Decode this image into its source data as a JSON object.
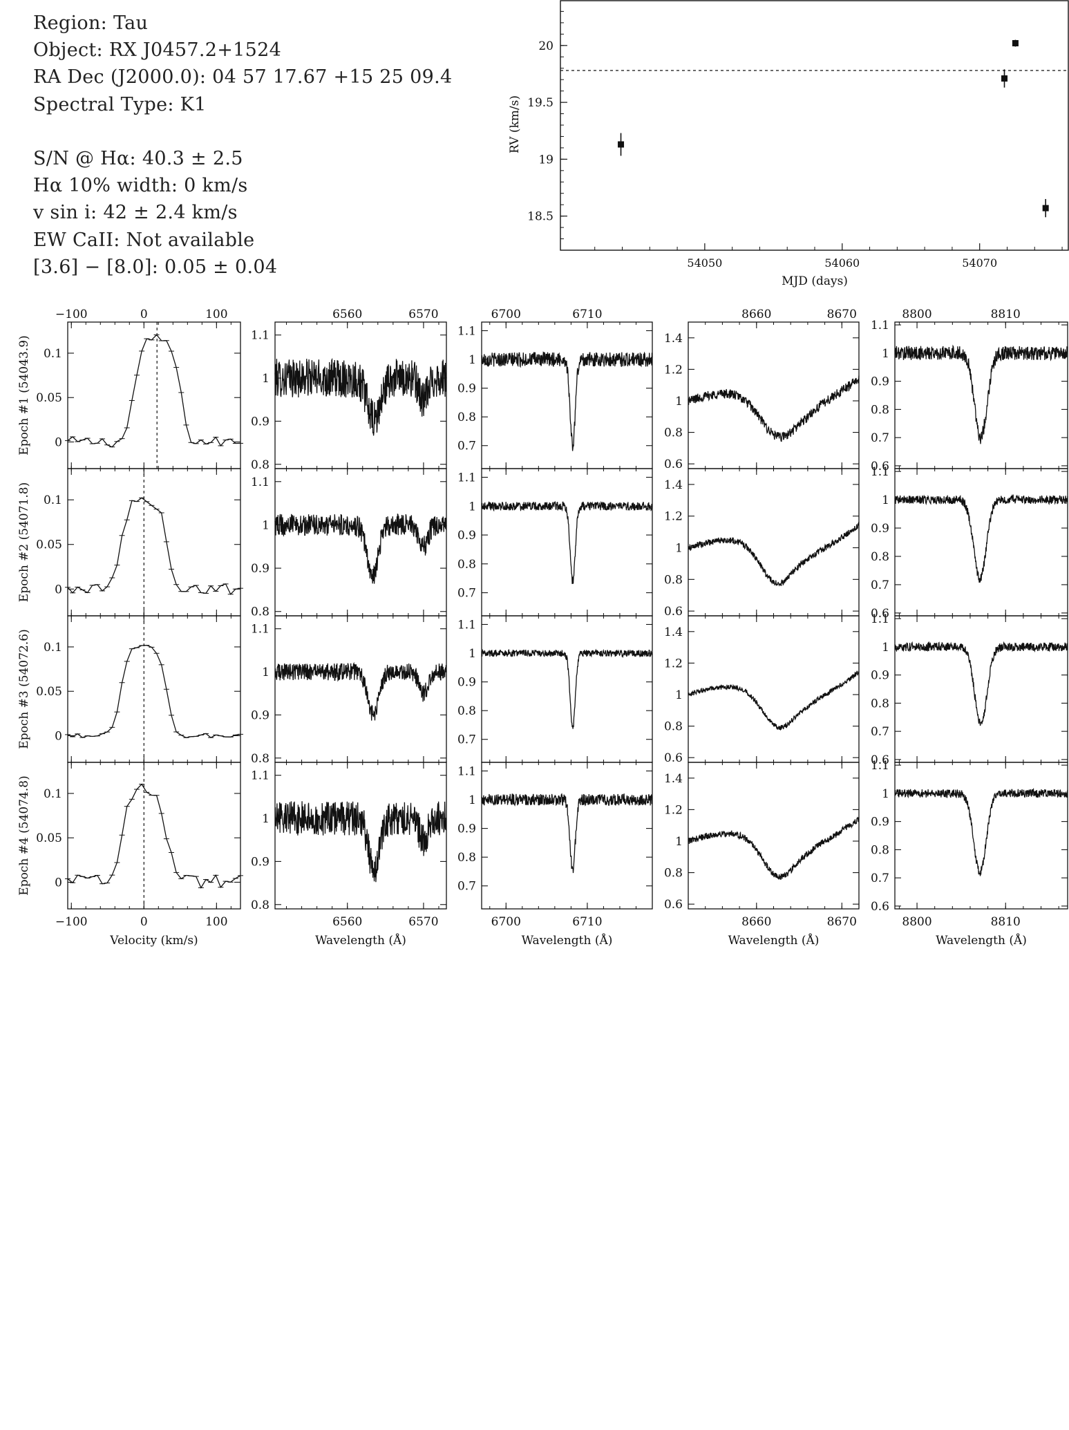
{
  "header": {
    "region": "Region: Tau",
    "object": "Object: RX J0457.2+1524",
    "radec": "RA Dec (J2000.0): 04 57 17.67 +15 25 09.4",
    "sptype": "Spectral Type: K1",
    "sn": "S/N @ Hα: 40.3 ± 2.5",
    "ha_width": "Hα 10% width: 0 km/s",
    "vsini": "v sin i: 42 ± 2.4 km/s",
    "ew_ca": "EW CaII: Not available",
    "irac": "[3.6] − [8.0]: 0.05 ± 0.04"
  },
  "chart_data": [
    {
      "id": "rv",
      "type": "scatter",
      "xlabel": "MJD (days)",
      "ylabel": "RV (km/s)",
      "xlim": [
        54039.5,
        54076.5
      ],
      "ylim": [
        18.2,
        20.4
      ],
      "xticks": [
        54050,
        54060,
        54070
      ],
      "yticks": [
        18.5,
        19,
        19.5,
        20
      ],
      "ytick_labels": [
        "18.5",
        "19",
        "19.5",
        "20"
      ],
      "mean_line": 19.78,
      "points": [
        {
          "x": 54043.9,
          "y": 19.13,
          "err": 0.1
        },
        {
          "x": 54071.8,
          "y": 19.71,
          "err": 0.08
        },
        {
          "x": 54072.6,
          "y": 20.02,
          "err": 0.03
        },
        {
          "x": 54074.8,
          "y": 18.57,
          "err": 0.08
        }
      ]
    },
    {
      "id": "spectra_grid",
      "type": "line",
      "epoch_labels": [
        "Epoch #1 (54043.9)",
        "Epoch #2 (54071.8)",
        "Epoch #3 (54072.6)",
        "Epoch #4 (54074.8)"
      ],
      "columns": [
        {
          "name": "broadening_function",
          "xlabel": "Velocity (km/s)",
          "xlim": [
            -105,
            133
          ],
          "xticks": [
            -100,
            0,
            100
          ],
          "xtick_labels": [
            "−100",
            "0",
            "100"
          ],
          "ylim": [
            -0.03,
            0.135
          ],
          "yticks": [
            0,
            0.05,
            0.1
          ],
          "ytick_labels": [
            "0",
            "0.05",
            "0.1"
          ],
          "rows": [
            {
              "center": 18,
              "peak": 0.115,
              "dip": 0.0,
              "width": 35,
              "noise": 0.006,
              "errorbars": true
            },
            {
              "center": 0,
              "peak": 0.1,
              "dip": 0.0,
              "width": 35,
              "noise": 0.006,
              "errorbars": true
            },
            {
              "center": 0,
              "peak": 0.1,
              "dip": 0.0,
              "width": 35,
              "noise": 0.003,
              "errorbars": true
            },
            {
              "center": 0,
              "peak": 0.105,
              "dip": 0.0,
              "width": 35,
              "noise": 0.008,
              "errorbars": true
            }
          ]
        },
        {
          "name": "h_alpha",
          "xlabel": "Wavelength (Å)",
          "xlim": [
            6550.5,
            6573.0
          ],
          "xticks": [
            6560,
            6570
          ],
          "xtick_labels": [
            "6560",
            "6570"
          ],
          "ylim": [
            0.79,
            1.13
          ],
          "yticks": [
            0.8,
            0.9,
            1,
            1.1
          ],
          "ytick_labels": [
            "0.8",
            "0.9",
            "1",
            "1.1"
          ],
          "rows": [
            {
              "center": 6563.5,
              "depth": 0.1,
              "width": 1.2,
              "noise": 0.045,
              "errorbars": false
            },
            {
              "center": 6563.3,
              "depth": 0.12,
              "width": 1.0,
              "noise": 0.025,
              "errorbars": false
            },
            {
              "center": 6563.4,
              "depth": 0.1,
              "width": 1.0,
              "noise": 0.02,
              "errorbars": false
            },
            {
              "center": 6563.5,
              "depth": 0.12,
              "width": 1.0,
              "noise": 0.04,
              "errorbars": false
            }
          ]
        },
        {
          "name": "li_6708",
          "xlabel": "Wavelength (Å)",
          "xlim": [
            6697.0,
            6718.0
          ],
          "xticks": [
            6700,
            6710
          ],
          "xtick_labels": [
            "6700",
            "6710"
          ],
          "ylim": [
            0.62,
            1.13
          ],
          "yticks": [
            0.7,
            0.8,
            0.9,
            1,
            1.1
          ],
          "ytick_labels": [
            "0.7",
            "0.8",
            "0.9",
            "1",
            "1.1"
          ],
          "rows": [
            {
              "center": 6708.2,
              "depth": 0.3,
              "width": 0.45,
              "noise": 0.025,
              "errorbars": false
            },
            {
              "center": 6708.2,
              "depth": 0.26,
              "width": 0.45,
              "noise": 0.015,
              "errorbars": false
            },
            {
              "center": 6708.2,
              "depth": 0.26,
              "width": 0.45,
              "noise": 0.012,
              "errorbars": false
            },
            {
              "center": 6708.2,
              "depth": 0.25,
              "width": 0.45,
              "noise": 0.02,
              "errorbars": false
            }
          ]
        },
        {
          "name": "ca_8662",
          "xlabel": "Wavelength (Å)",
          "xlim": [
            8652.0,
            8672.0
          ],
          "xticks": [
            8660,
            8670
          ],
          "xtick_labels": [
            "8660",
            "8670"
          ],
          "ylim": [
            0.57,
            1.5
          ],
          "yticks": [
            0.6,
            0.8,
            1,
            1.2,
            1.4
          ],
          "ytick_labels": [
            "0.6",
            "0.8",
            "1",
            "1.2",
            "1.4"
          ],
          "rows": [
            {
              "center": 8662.5,
              "depth": 0.22,
              "width": 3.0,
              "noise": 0.03,
              "errorbars": false
            },
            {
              "center": 8662.3,
              "depth": 0.22,
              "width": 2.6,
              "noise": 0.02,
              "errorbars": false
            },
            {
              "center": 8662.5,
              "depth": 0.2,
              "width": 2.6,
              "noise": 0.015,
              "errorbars": false
            },
            {
              "center": 8662.5,
              "depth": 0.22,
              "width": 2.6,
              "noise": 0.02,
              "errorbars": false
            }
          ]
        },
        {
          "name": "ca_8807",
          "xlabel": "Wavelength (Å)",
          "xlim": [
            8797.5,
            8817.0
          ],
          "xticks": [
            8800,
            8810
          ],
          "xtick_labels": [
            "8800",
            "8810"
          ],
          "ylim": [
            0.59,
            1.11
          ],
          "yticks": [
            0.6,
            0.7,
            0.8,
            0.9,
            1,
            1.1
          ],
          "ytick_labels": [
            "0.6",
            "0.7",
            "0.8",
            "0.9",
            "1",
            "1.1"
          ],
          "rows": [
            {
              "center": 8807.2,
              "depth": 0.3,
              "width": 1.0,
              "noise": 0.025,
              "errorbars": false
            },
            {
              "center": 8807.1,
              "depth": 0.28,
              "width": 1.0,
              "noise": 0.015,
              "errorbars": false
            },
            {
              "center": 8807.2,
              "depth": 0.27,
              "width": 1.0,
              "noise": 0.015,
              "errorbars": false
            },
            {
              "center": 8807.1,
              "depth": 0.28,
              "width": 1.0,
              "noise": 0.015,
              "errorbars": false
            }
          ]
        }
      ]
    }
  ]
}
